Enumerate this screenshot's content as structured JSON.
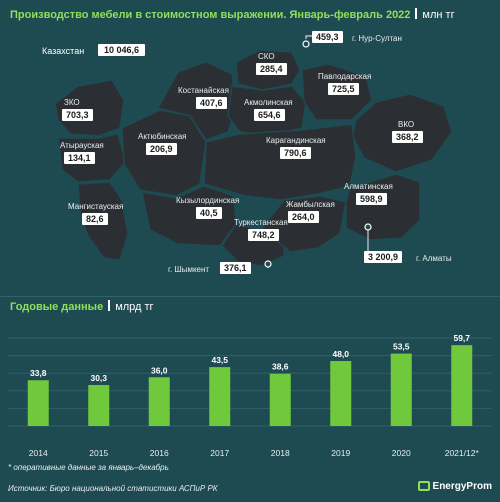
{
  "header": {
    "title": "Производство мебели в стоимостном выражении. Январь-февраль 2022",
    "unit": "млн тг"
  },
  "map": {
    "country": {
      "name": "Казахстан",
      "value": "10 046,6"
    },
    "regions": [
      {
        "id": "zko",
        "name": "ЗКО",
        "value": "703,3"
      },
      {
        "id": "atyrau",
        "name": "Атырауская",
        "value": "134,1"
      },
      {
        "id": "mangistau",
        "name": "Мангистауская",
        "value": "82,6"
      },
      {
        "id": "aktobe",
        "name": "Актюбинская",
        "value": "206,9"
      },
      {
        "id": "kostanay",
        "name": "Костанайская",
        "value": "407,6"
      },
      {
        "id": "sko",
        "name": "СКО",
        "value": "285,4"
      },
      {
        "id": "akmola",
        "name": "Акмолинская",
        "value": "654,6"
      },
      {
        "id": "pavlodar",
        "name": "Павлодарская",
        "value": "725,5"
      },
      {
        "id": "vko",
        "name": "ВКО",
        "value": "368,2"
      },
      {
        "id": "karaganda",
        "name": "Карагандинская",
        "value": "790,6"
      },
      {
        "id": "kyzylorda",
        "name": "Кызылординская",
        "value": "40,5"
      },
      {
        "id": "turkestan",
        "name": "Туркестанская",
        "value": "748,2"
      },
      {
        "id": "zhambyl",
        "name": "Жамбылская",
        "value": "264,0"
      },
      {
        "id": "almaty_obl",
        "name": "Алматинская",
        "value": "598,9"
      }
    ],
    "cities": [
      {
        "id": "nur_sultan",
        "name": "г. Нур-Султан",
        "value": "459,3"
      },
      {
        "id": "almaty",
        "name": "г. Алматы",
        "value": "3 200,9"
      },
      {
        "id": "shymkent",
        "name": "г. Шымкент",
        "value": "376,1"
      }
    ]
  },
  "annual": {
    "title": "Годовые данные",
    "unit": "млрд тг"
  },
  "chart_data": {
    "type": "bar",
    "categories": [
      "2014",
      "2015",
      "2016",
      "2017",
      "2018",
      "2019",
      "2020",
      "2021/12*"
    ],
    "values": [
      33.8,
      30.3,
      36.0,
      43.5,
      38.6,
      48.0,
      53.5,
      59.7
    ],
    "value_labels": [
      "33,8",
      "30,3",
      "36,0",
      "43,5",
      "38,6",
      "48,0",
      "53,5",
      "59,7"
    ],
    "ylim": [
      0,
      65
    ],
    "grid": true,
    "bar_color": "#6fc93a"
  },
  "footnote": "* оперативные данные за январь–декабрь",
  "source": "Источник: Бюро национальной статистики АСПиР РК",
  "brand": "EnergyProm"
}
